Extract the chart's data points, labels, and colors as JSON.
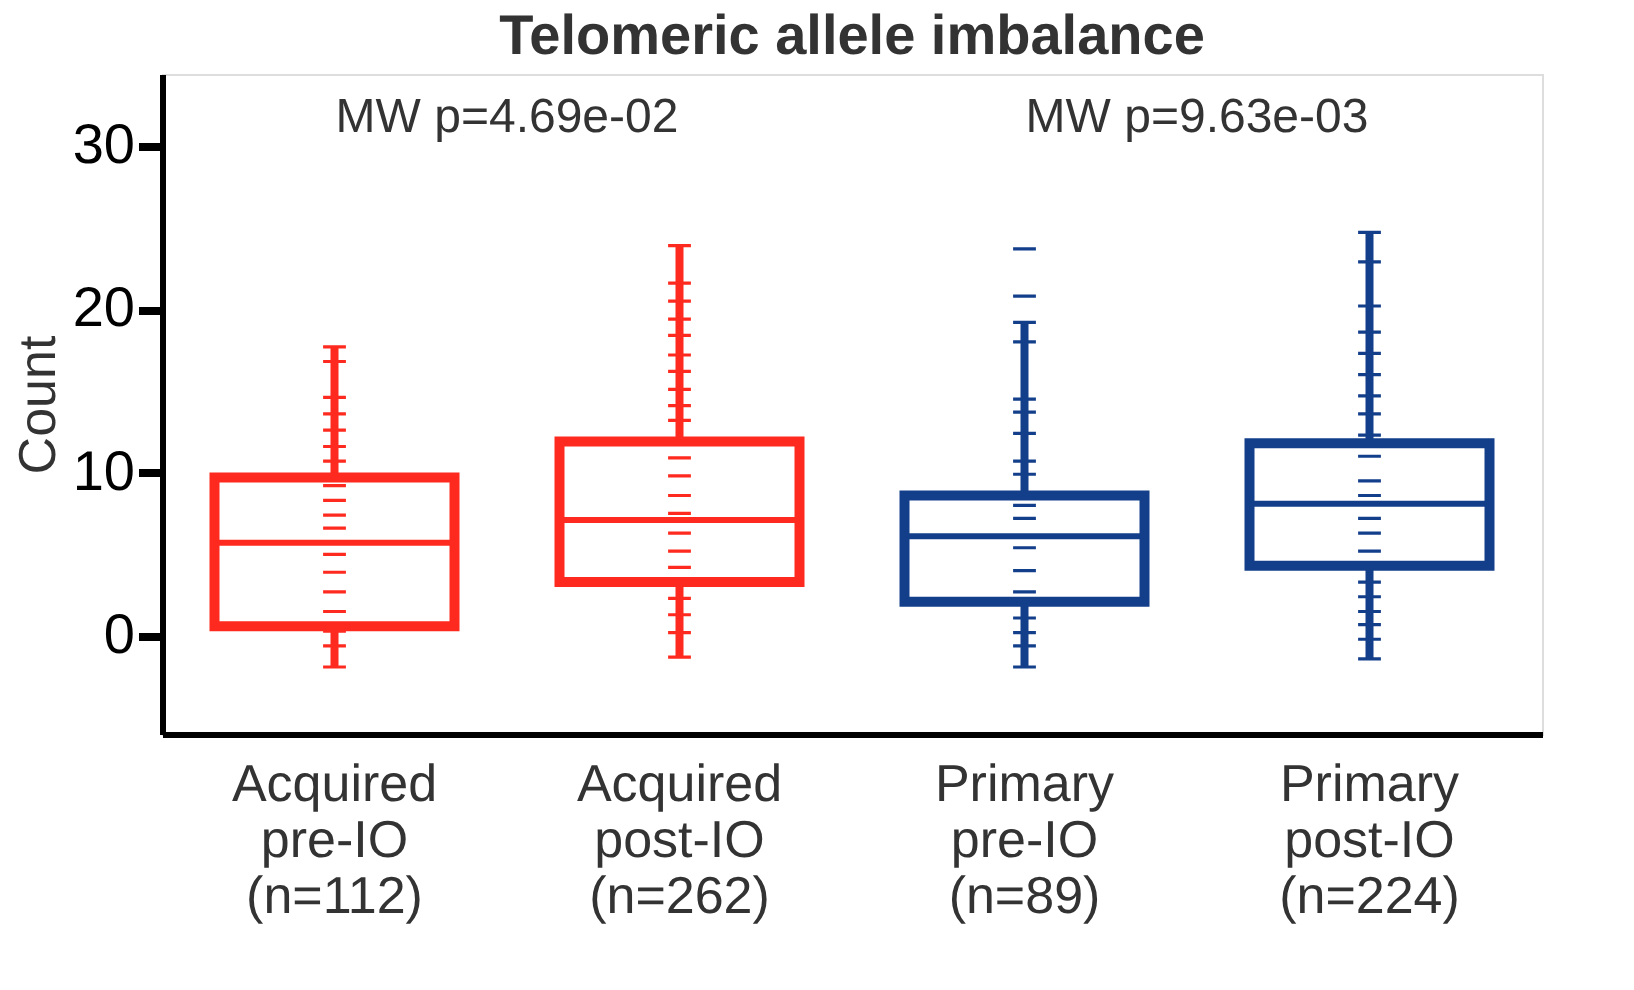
{
  "chart_data": {
    "type": "box",
    "title": "Telomeric allele imbalance",
    "ylabel": "Count",
    "categories": [
      "Acquired pre-IO (n=112)",
      "Acquired post-IO (n=262)",
      "Primary pre-IO (n=89)",
      "Primary post-IO (n=224)"
    ],
    "colors": [
      "#ff2a1f",
      "#ff2a1f",
      "#133f8a",
      "#133f8a"
    ],
    "boxes": [
      {
        "low": -1.9,
        "q1": 0.6,
        "median": 5.7,
        "q3": 9.7,
        "high": 17.7
      },
      {
        "low": -1.3,
        "q1": 3.3,
        "median": 7.1,
        "q3": 11.9,
        "high": 23.9
      },
      {
        "low": -1.9,
        "q1": 2.1,
        "median": 6.1,
        "q3": 8.6,
        "high": 19.2
      },
      {
        "low": -1.4,
        "q1": 4.3,
        "median": 8.1,
        "q3": 11.8,
        "high": 24.7
      }
    ],
    "series": [
      {
        "type": "scatter",
        "color": "#ff2a1f",
        "x": [
          "Acquired pre-IO (n=112)",
          "Acquired pre-IO (n=112)",
          "Acquired pre-IO (n=112)",
          "Acquired pre-IO (n=112)",
          "Acquired pre-IO (n=112)",
          "Acquired pre-IO (n=112)",
          "Acquired pre-IO (n=112)",
          "Acquired pre-IO (n=112)",
          "Acquired pre-IO (n=112)",
          "Acquired pre-IO (n=112)",
          "Acquired pre-IO (n=112)",
          "Acquired pre-IO (n=112)",
          "Acquired pre-IO (n=112)",
          "Acquired pre-IO (n=112)",
          "Acquired pre-IO (n=112)",
          "Acquired pre-IO (n=112)",
          "Acquired pre-IO (n=112)",
          "Acquired pre-IO (n=112)",
          "Acquired post-IO (n=262)",
          "Acquired post-IO (n=262)",
          "Acquired post-IO (n=262)",
          "Acquired post-IO (n=262)",
          "Acquired post-IO (n=262)",
          "Acquired post-IO (n=262)",
          "Acquired post-IO (n=262)",
          "Acquired post-IO (n=262)",
          "Acquired post-IO (n=262)",
          "Acquired post-IO (n=262)",
          "Acquired post-IO (n=262)",
          "Acquired post-IO (n=262)",
          "Acquired post-IO (n=262)",
          "Acquired post-IO (n=262)",
          "Acquired post-IO (n=262)",
          "Acquired post-IO (n=262)",
          "Acquired post-IO (n=262)",
          "Acquired post-IO (n=262)",
          "Acquired post-IO (n=262)",
          "Acquired post-IO (n=262)",
          "Acquired post-IO (n=262)"
        ],
        "values": [
          17.7,
          16.8,
          14.6,
          13.6,
          12.6,
          11.6,
          10.7,
          9.2,
          8.3,
          7.4,
          6.6,
          5.0,
          3.9,
          2.7,
          1.5,
          0.3,
          -0.6,
          -1.9,
          23.9,
          21.6,
          20.5,
          19.4,
          18.4,
          17.2,
          16.2,
          15.1,
          14.1,
          13.2,
          10.9,
          9.8,
          8.6,
          7.5,
          6.3,
          5.2,
          4.2,
          2.3,
          1.3,
          0.2,
          -1.3
        ]
      },
      {
        "type": "scatter",
        "color": "#133f8a",
        "x": [
          "Primary pre-IO (n=89)",
          "Primary pre-IO (n=89)",
          "Primary pre-IO (n=89)",
          "Primary pre-IO (n=89)",
          "Primary pre-IO (n=89)",
          "Primary pre-IO (n=89)",
          "Primary pre-IO (n=89)",
          "Primary pre-IO (n=89)",
          "Primary pre-IO (n=89)",
          "Primary pre-IO (n=89)",
          "Primary pre-IO (n=89)",
          "Primary pre-IO (n=89)",
          "Primary pre-IO (n=89)",
          "Primary pre-IO (n=89)",
          "Primary pre-IO (n=89)",
          "Primary pre-IO (n=89)",
          "Primary pre-IO (n=89)",
          "Primary pre-IO (n=89)",
          "Primary post-IO (n=224)",
          "Primary post-IO (n=224)",
          "Primary post-IO (n=224)",
          "Primary post-IO (n=224)",
          "Primary post-IO (n=224)",
          "Primary post-IO (n=224)",
          "Primary post-IO (n=224)",
          "Primary post-IO (n=224)",
          "Primary post-IO (n=224)",
          "Primary post-IO (n=224)",
          "Primary post-IO (n=224)",
          "Primary post-IO (n=224)",
          "Primary post-IO (n=224)",
          "Primary post-IO (n=224)",
          "Primary post-IO (n=224)",
          "Primary post-IO (n=224)",
          "Primary post-IO (n=224)",
          "Primary post-IO (n=224)",
          "Primary post-IO (n=224)",
          "Primary post-IO (n=224)",
          "Primary post-IO (n=224)"
        ],
        "values": [
          23.7,
          20.8,
          19.2,
          18.0,
          14.5,
          13.7,
          12.4,
          10.7,
          9.9,
          8.0,
          7.2,
          5.4,
          4.0,
          2.7,
          1.1,
          0.2,
          -0.6,
          -1.9,
          24.7,
          22.9,
          20.2,
          18.6,
          17.3,
          16.0,
          14.7,
          13.6,
          12.3,
          11.0,
          9.5,
          8.6,
          7.2,
          6.3,
          5.2,
          3.3,
          2.4,
          1.5,
          0.7,
          -0.2,
          -1.4
        ]
      }
    ],
    "annotations": [
      "MW p=4.69e-02",
      "MW p=9.63e-03"
    ],
    "ylim": [
      -6,
      34.4
    ],
    "yticks": [
      0,
      10,
      20,
      30
    ],
    "grid": false
  }
}
